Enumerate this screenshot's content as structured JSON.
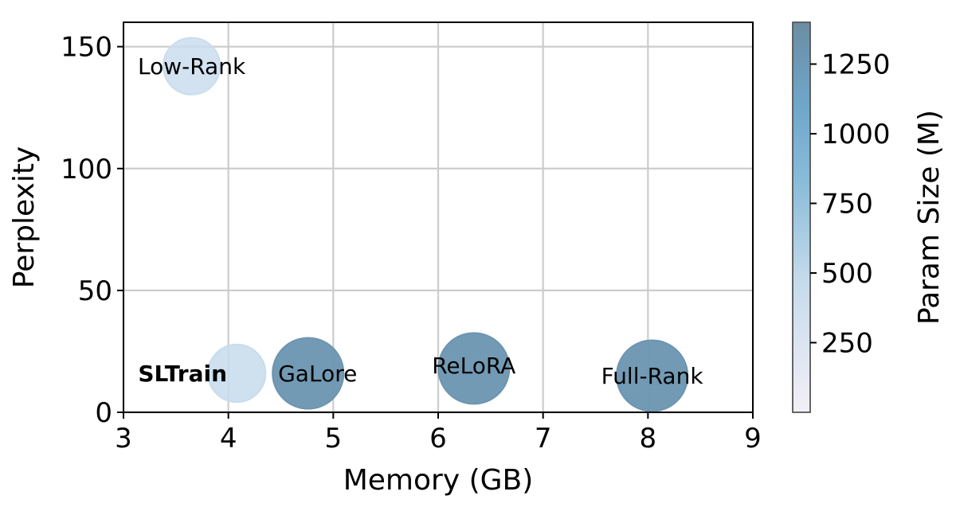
{
  "chart_data": {
    "type": "scatter",
    "xlabel": "Memory (GB)",
    "ylabel": "Perplexity",
    "xlim": [
      3,
      9
    ],
    "ylim": [
      0,
      160
    ],
    "xticks": [
      3,
      4,
      5,
      6,
      7,
      8,
      9
    ],
    "yticks": [
      0,
      50,
      100,
      150
    ],
    "grid": true,
    "colorbar": {
      "label": "Param Size (M)",
      "range": [
        0,
        1400
      ],
      "ticks": [
        250,
        500,
        750,
        1000,
        1250
      ]
    },
    "points": [
      {
        "label": "Low-Rank",
        "x": 3.65,
        "y": 142,
        "param_size": 420,
        "bold": false
      },
      {
        "label": "SLTrain",
        "x": 4.08,
        "y": 16,
        "param_size": 450,
        "bold": true
      },
      {
        "label": "GaLore",
        "x": 4.76,
        "y": 16,
        "param_size": 1300,
        "bold": false
      },
      {
        "label": "ReLoRA",
        "x": 6.34,
        "y": 18,
        "param_size": 1300,
        "bold": false
      },
      {
        "label": "Full-Rank",
        "x": 8.04,
        "y": 15,
        "param_size": 1300,
        "bold": false
      }
    ]
  }
}
